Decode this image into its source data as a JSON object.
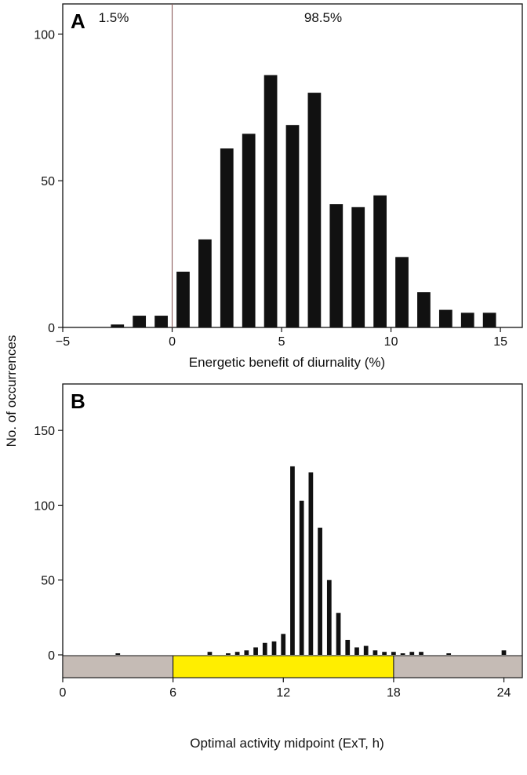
{
  "shared_ylabel": "No. of occurrences",
  "chart_data": [
    {
      "panel": "A",
      "type": "bar",
      "xlabel": "Energetic benefit of diurnality (%)",
      "xlim": [
        -5,
        16
      ],
      "ylim": [
        0,
        110
      ],
      "xticks": [
        -5,
        0,
        5,
        10,
        15
      ],
      "xtick_labels": [
        "−5",
        "0",
        "5",
        "10",
        "15"
      ],
      "yticks": [
        0,
        50,
        100
      ],
      "bin_width": 0.6,
      "bar_centers": [
        -2.5,
        -1.5,
        -0.5,
        0.5,
        1.5,
        2.5,
        3.5,
        4.5,
        5.5,
        6.5,
        7.5,
        8.5,
        9.5,
        10.5,
        11.5,
        12.5,
        13.5,
        14.5
      ],
      "values": [
        1,
        4,
        4,
        19,
        30,
        61,
        66,
        86,
        69,
        80,
        42,
        41,
        45,
        24,
        12,
        6,
        5,
        5
      ],
      "reference_line_x": 0,
      "reference_line_color": "#8b5a5a",
      "annotations": [
        {
          "text": "1.5%",
          "x": -2.5
        },
        {
          "text": "98.5%",
          "x": 5.8
        }
      ]
    },
    {
      "panel": "B",
      "type": "bar",
      "xlabel": "Optimal activity midpoint (ExT, h)",
      "xlim": [
        0,
        25
      ],
      "ylim": [
        0,
        180
      ],
      "xticks": [
        0,
        6,
        12,
        18,
        24
      ],
      "xtick_labels": [
        "0",
        "6",
        "12",
        "18",
        "24"
      ],
      "yticks": [
        0,
        50,
        100,
        150
      ],
      "bin_width": 0.25,
      "bar_centers": [
        3.0,
        8.0,
        8.75,
        9.0,
        9.25,
        9.5,
        9.75,
        10.0,
        10.25,
        10.5,
        10.75,
        11.0,
        11.25,
        11.5,
        11.75,
        12.0,
        12.25,
        12.5,
        12.75,
        13.0,
        13.25,
        13.5,
        13.75,
        14.0,
        14.25,
        14.5,
        14.75,
        15.0,
        15.25,
        15.5,
        15.75,
        16.0,
        16.25,
        16.5,
        16.75,
        17.0,
        17.25,
        17.5,
        17.75,
        18.0,
        18.25,
        18.5,
        18.75,
        19.0,
        19.25,
        19.5,
        19.75,
        20.0,
        20.25,
        20.5,
        20.75,
        21.0,
        24.0
      ],
      "values": [
        1,
        2,
        0,
        1,
        0,
        2,
        0,
        3,
        0,
        5,
        0,
        8,
        0,
        9,
        0,
        14,
        0,
        126,
        0,
        103,
        0,
        122,
        0,
        85,
        0,
        50,
        0,
        28,
        0,
        10,
        0,
        5,
        0,
        6,
        0,
        3,
        0,
        2,
        0,
        2,
        0,
        1,
        0,
        2,
        0,
        2,
        0,
        0,
        0,
        0,
        0,
        1,
        3
      ],
      "day_night_bar": {
        "night_color": "#c5bbb5",
        "day_color": "#ffee00",
        "day_start": 6,
        "day_end": 18
      }
    }
  ]
}
